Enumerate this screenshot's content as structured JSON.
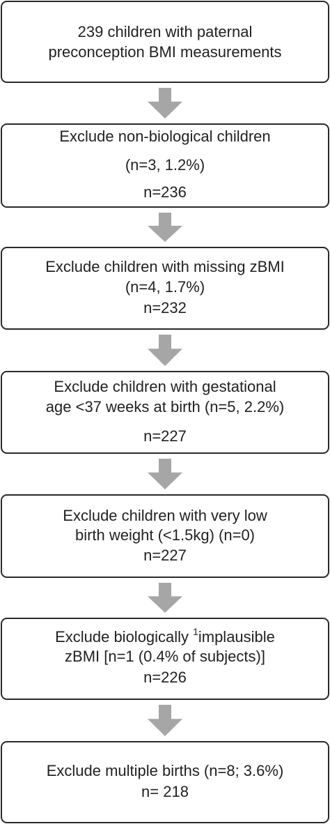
{
  "nodes": [
    {
      "lines": [
        "239 children with paternal",
        "preconception BMI measurements"
      ]
    },
    {
      "lines": [
        "Exclude non-biological children",
        "(n=3, 1.2%)",
        "n=236"
      ]
    },
    {
      "lines": [
        "Exclude children with missing zBMI",
        "(n=4, 1.7%)",
        "n=232"
      ]
    },
    {
      "lines": [
        "Exclude children with gestational",
        "age <37 weeks at birth (n=5, 2.2%)",
        "n=227"
      ]
    },
    {
      "lines": [
        "Exclude children with  very low",
        "birth weight (<1.5kg) (n=0)",
        "n=227"
      ]
    },
    {
      "lines": [
        {
          "before": "Exclude biologically",
          "superscript": "1",
          "after": "implausible"
        },
        "zBMI [n=1 (0.4% of subjects)]",
        "n=226"
      ]
    },
    {
      "lines": [
        "Exclude multiple births (n=8; 3.6%)",
        "n= 218"
      ]
    }
  ]
}
